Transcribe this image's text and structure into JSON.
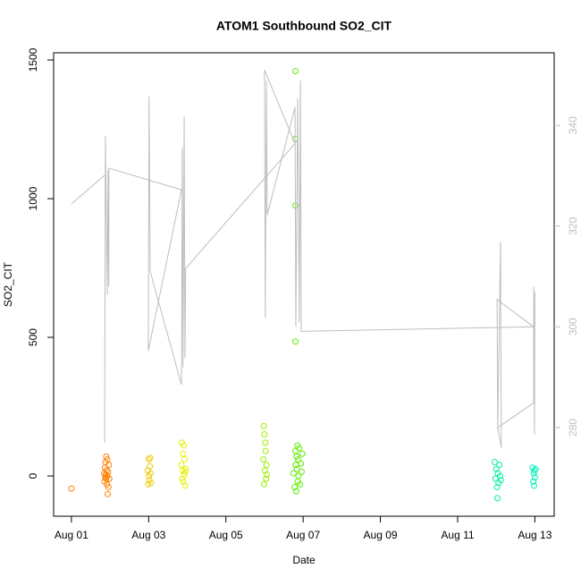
{
  "chart_data": {
    "type": "scatter",
    "title": "ATOM1 Southbound SO2_CIT",
    "x_label": "Date",
    "y_label": "SO2_CIT",
    "xlim": [
      -0.46,
      12.5
    ],
    "xticks": [
      {
        "value": 0,
        "label": "Aug 01"
      },
      {
        "value": 2,
        "label": "Aug 03"
      },
      {
        "value": 4,
        "label": "Aug 05"
      },
      {
        "value": 6,
        "label": "Aug 07"
      },
      {
        "value": 8,
        "label": "Aug 09"
      },
      {
        "value": 10,
        "label": "Aug 11"
      },
      {
        "value": 12,
        "label": "Aug 13"
      }
    ],
    "ylim": [
      -145,
      1526
    ],
    "yticks": [
      0,
      500,
      1000,
      1500
    ],
    "y2lim": [
      262.4,
      354.4
    ],
    "y2ticks": [
      280,
      300,
      320,
      340
    ],
    "y2_color": "#bebebe",
    "series": [
      {
        "color": "#ff8000",
        "x": [
          0,
          0.85,
          0.86,
          0.87,
          0.88,
          0.88,
          0.89,
          0.9,
          0.9,
          0.91,
          0.92,
          0.93,
          0.93,
          0.94,
          0.95,
          0.96,
          0.97,
          0.98
        ],
        "values": [
          -45,
          10,
          -20,
          30,
          -5,
          50,
          5,
          -10,
          70,
          20,
          -30,
          60,
          0,
          -65,
          15,
          -40,
          40,
          -10
        ]
      },
      {
        "color": "#f0c800",
        "x": [
          1.98,
          1.99,
          2.0,
          2.01,
          2.02,
          2.03,
          2.04,
          2.05,
          2.06
        ],
        "values": [
          20,
          -30,
          60,
          0,
          -15,
          35,
          65,
          10,
          -25
        ]
      },
      {
        "color": "#e6f000",
        "x": [
          2.85,
          2.86,
          2.87,
          2.88,
          2.89,
          2.9,
          2.91,
          2.92,
          2.93,
          2.94,
          2.95,
          2.96
        ],
        "values": [
          40,
          120,
          -10,
          20,
          80,
          -20,
          110,
          5,
          60,
          -35,
          15,
          25
        ]
      },
      {
        "color": "#a0ee00",
        "x": [
          4.97,
          4.98,
          4.99,
          5.0,
          5.01,
          5.02,
          5.03,
          5.04,
          5.05,
          5.06
        ],
        "values": [
          60,
          180,
          -30,
          150,
          20,
          120,
          90,
          -10,
          40,
          5
        ]
      },
      {
        "color": "#5cee00",
        "x": [
          5.75,
          5.78,
          5.8,
          5.81,
          5.82,
          5.83,
          5.84,
          5.85,
          5.86,
          5.87,
          5.88,
          5.9,
          5.92,
          5.94,
          5.96,
          5.98,
          5.8,
          5.8,
          5.8,
          5.8
        ],
        "values": [
          10,
          -40,
          90,
          40,
          -55,
          70,
          25,
          110,
          -20,
          60,
          0,
          100,
          -30,
          45,
          15,
          80,
          1460,
          1215,
          975,
          485
        ]
      },
      {
        "color": "#00eea0",
        "x": [
          10.96,
          10.98,
          11.0,
          11.02,
          11.04,
          11.06,
          11.08,
          11.1,
          11.12,
          11.03
        ],
        "values": [
          50,
          -10,
          25,
          -40,
          10,
          -25,
          40,
          0,
          -15,
          -80
        ]
      },
      {
        "color": "#00eeb8",
        "x": [
          11.94,
          11.96,
          11.97,
          11.98,
          11.99,
          12.0,
          12.02
        ],
        "values": [
          30,
          -20,
          10,
          -35,
          20,
          -5,
          25
        ]
      },
      {
        "type": "line",
        "axis": "y2",
        "color": "#bebebe",
        "x": [
          0,
          0.88,
          0.86,
          0.88,
          0.93,
          0.95,
          0.97,
          0.97,
          2.85,
          1.99,
          2.01,
          2.04,
          2.85,
          2.87,
          2.89,
          2.92,
          2.94,
          2.96,
          5.79,
          5.0,
          5.02,
          5.05,
          5.07,
          5.79,
          5.81,
          5.86,
          5.9,
          5.93,
          5.95,
          11.97,
          11.02,
          11.04,
          11.11,
          11.13,
          11.04,
          11.97,
          11.97,
          11.99,
          12.0
        ],
        "values": [
          324.4,
          330.2,
          277,
          337.9,
          306.3,
          331.1,
          308,
          331.5,
          327.2,
          295.2,
          345.7,
          311,
          288.5,
          335.6,
          292,
          341.8,
          293.8,
          311.6,
          336.4,
          351,
          301.8,
          348.9,
          322.2,
          343.6,
          300,
          345.3,
          300.9,
          348.9,
          299.1,
          300,
          305.4,
          279.6,
          316.9,
          276,
          280,
          284.9,
          308,
          278.7,
          307
        ]
      }
    ]
  }
}
